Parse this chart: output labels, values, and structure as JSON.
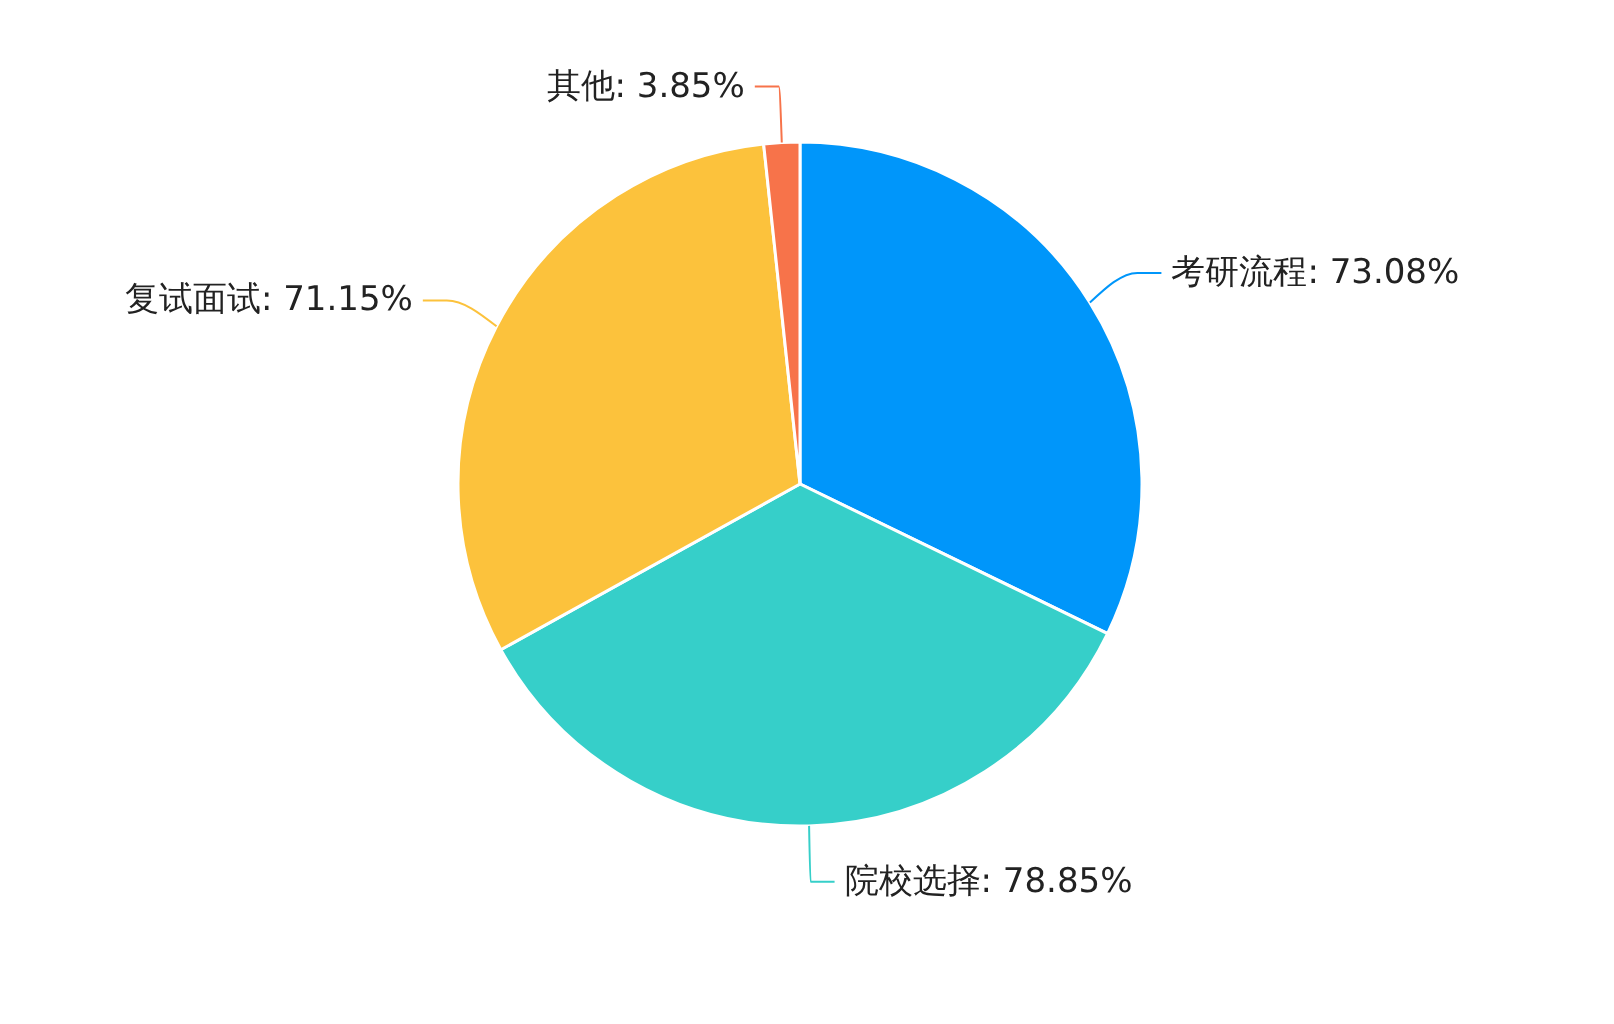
{
  "chart_data": {
    "type": "pie",
    "categories": [
      "考研流程",
      "院校选择",
      "复试面试",
      "其他"
    ],
    "values": [
      73.08,
      78.85,
      71.15,
      3.85
    ],
    "colors": [
      "#0096fa",
      "#36cfc9",
      "#fcc23c",
      "#f7734a"
    ],
    "value_labels": [
      "73.08%",
      "78.85%",
      "71.15%",
      "3.85%"
    ]
  }
}
